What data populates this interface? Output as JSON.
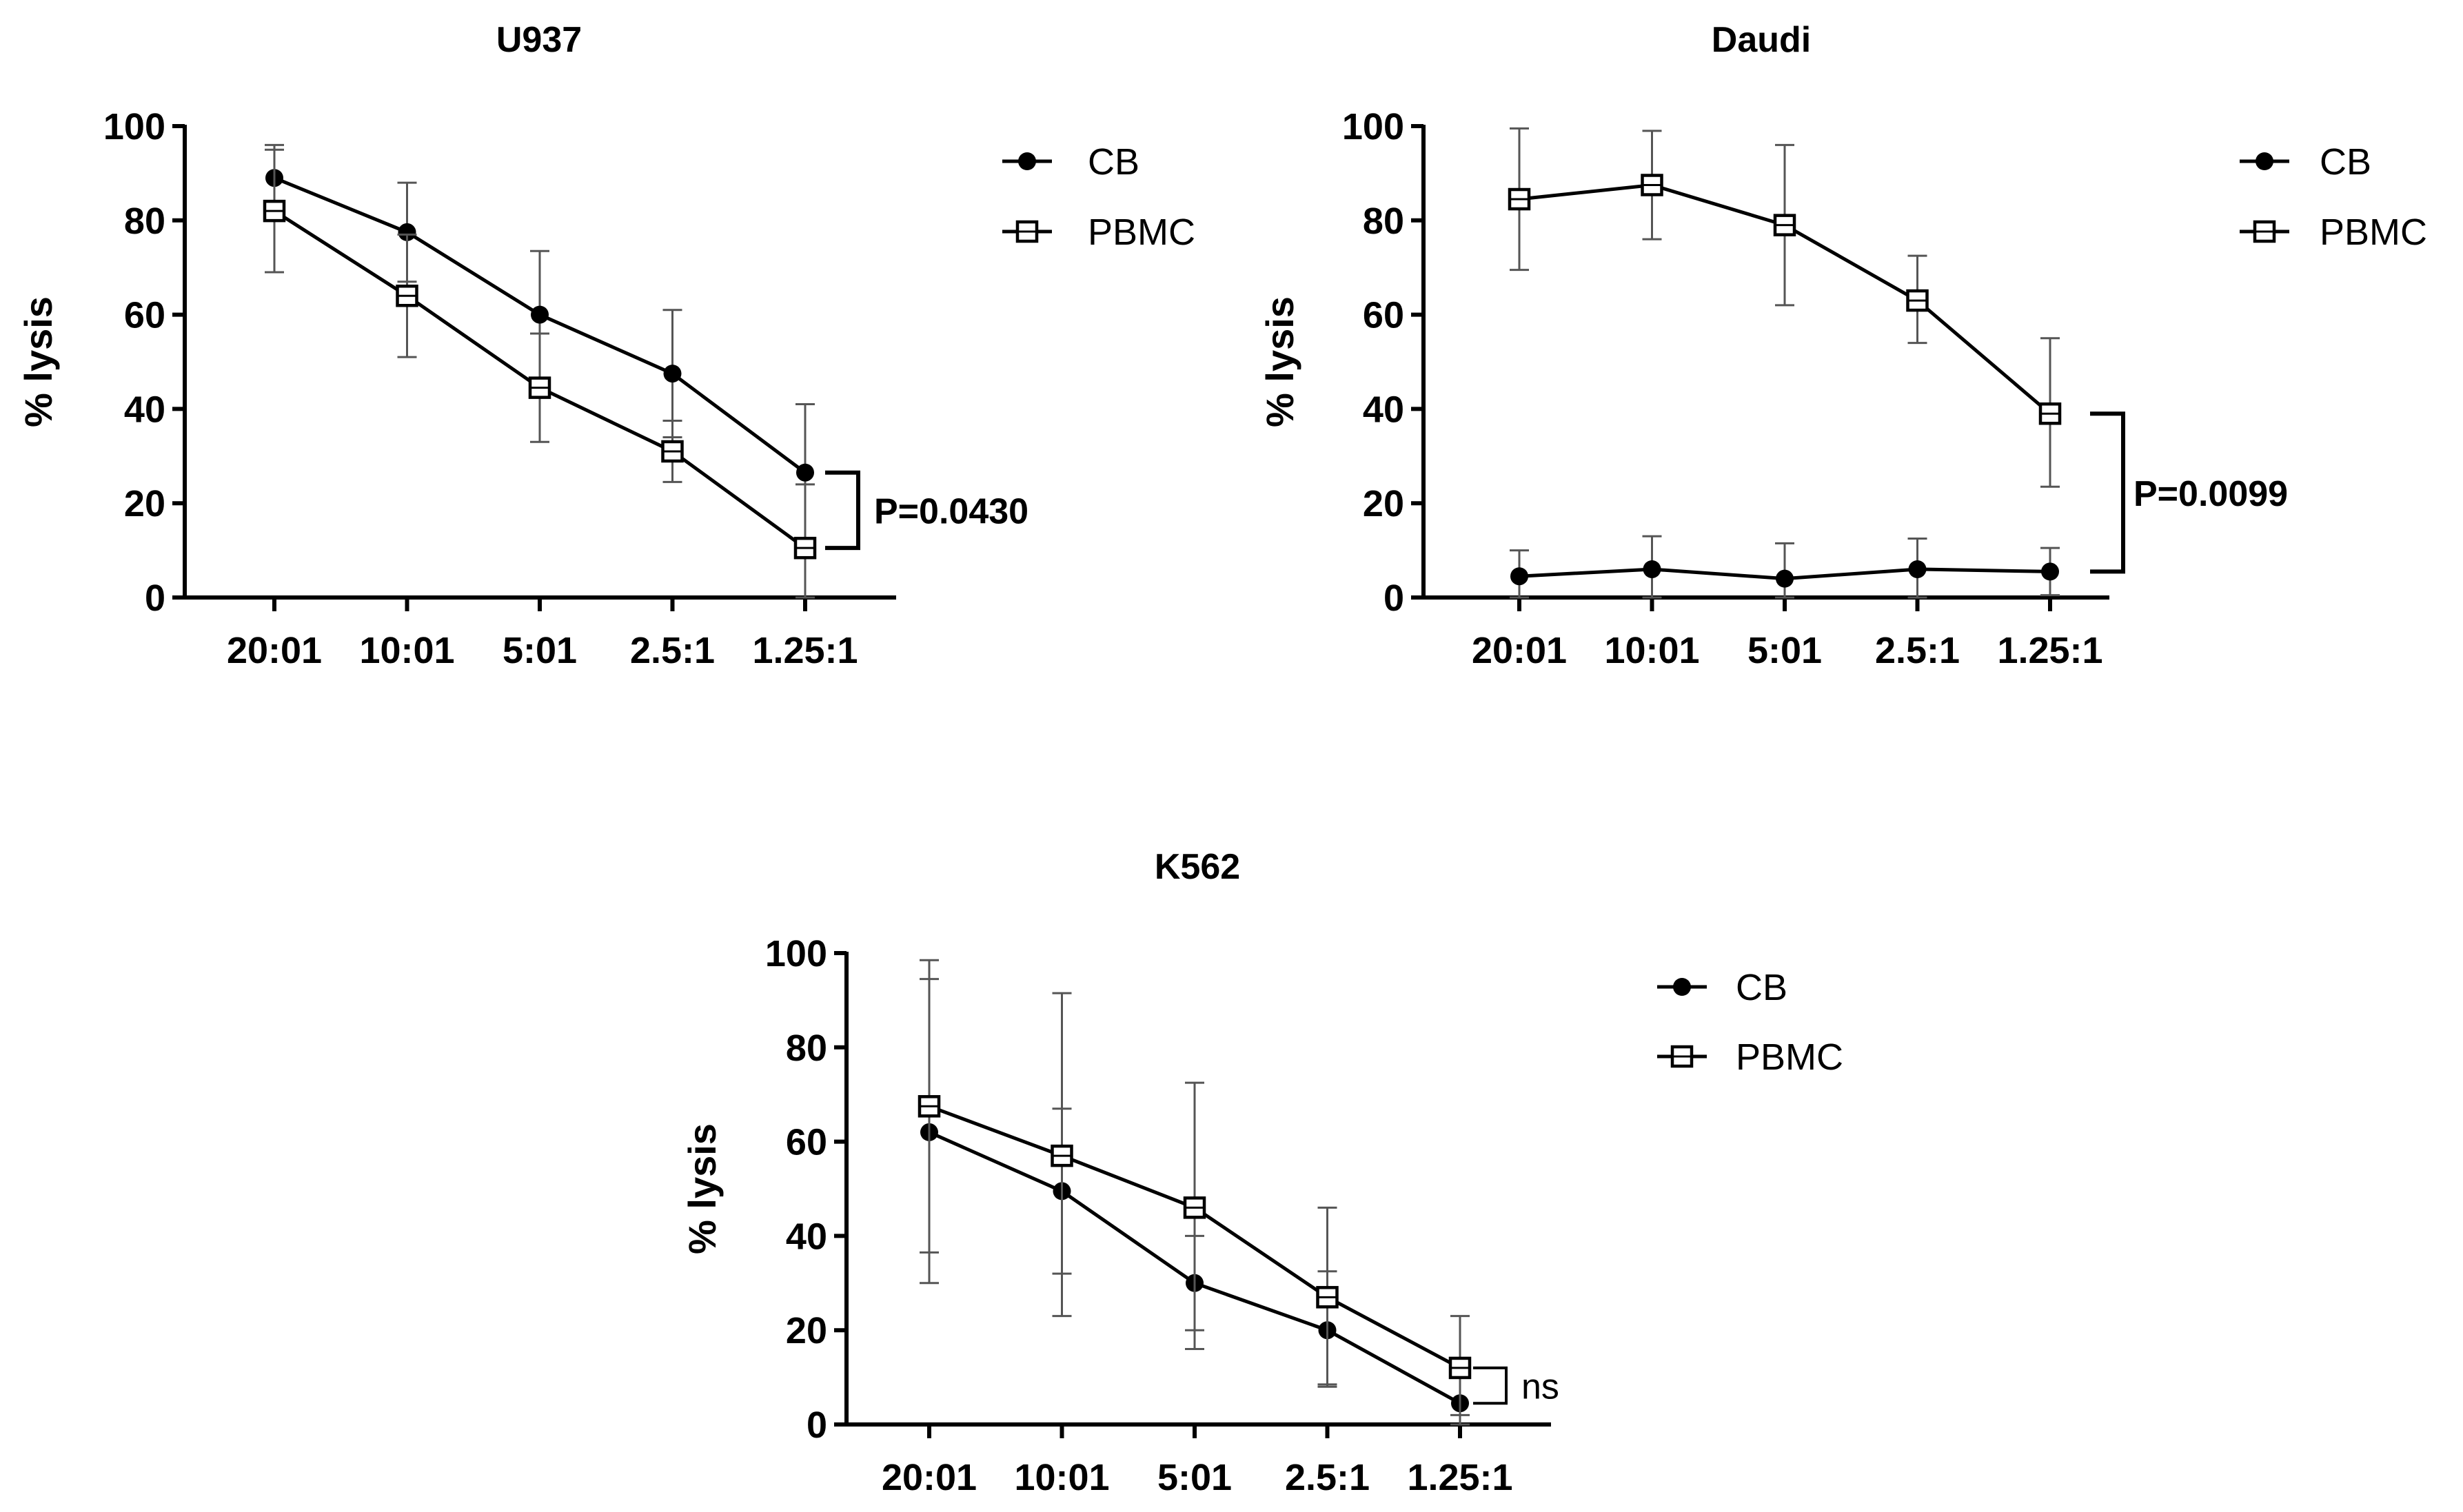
{
  "chart_data": [
    {
      "type": "line",
      "title": "U937",
      "xlabel": "",
      "ylabel": "% lysis",
      "categories": [
        "20:01",
        "10:01",
        "5:01",
        "2.5:1",
        "1.25:1"
      ],
      "ylim": [
        0,
        100
      ],
      "yticks": [
        "0",
        "20",
        "40",
        "60",
        "80",
        "100"
      ],
      "legend_position": "top-right outside",
      "series": [
        {
          "name": "CB",
          "marker": "filled-circle",
          "values": [
            89,
            77.5,
            60,
            47.5,
            26.5
          ],
          "err_high": [
            96,
            88,
            73.5,
            61,
            41
          ],
          "err_low": [
            82,
            67,
            46,
            34,
            12
          ]
        },
        {
          "name": "PBMC",
          "marker": "open-square",
          "values": [
            82,
            64,
            44.5,
            31,
            10.5
          ],
          "err_high": [
            95,
            77,
            56,
            37.5,
            24
          ],
          "err_low": [
            69,
            51,
            33,
            24.5,
            0
          ]
        }
      ],
      "annotation": {
        "text": "P=0.0430",
        "style": "bold",
        "spans": "1.25:1"
      }
    },
    {
      "type": "line",
      "title": "Daudi",
      "xlabel": "",
      "ylabel": "% lysis",
      "categories": [
        "20:01",
        "10:01",
        "5:01",
        "2.5:1",
        "1.25:1"
      ],
      "ylim": [
        0,
        100
      ],
      "yticks": [
        "0",
        "20",
        "40",
        "60",
        "80",
        "100"
      ],
      "legend_position": "top-right outside",
      "series": [
        {
          "name": "CB",
          "marker": "filled-circle",
          "values": [
            4.5,
            6,
            4,
            6,
            5.5
          ],
          "err_high": [
            10,
            13,
            11.5,
            12.5,
            10.5
          ],
          "err_low": [
            0,
            0,
            0,
            0,
            0.5
          ]
        },
        {
          "name": "PBMC",
          "marker": "open-square",
          "values": [
            84.5,
            87.5,
            79,
            63,
            39
          ],
          "err_high": [
            99.5,
            99,
            96,
            72.5,
            55
          ],
          "err_low": [
            69.5,
            76,
            62,
            54,
            23.5
          ]
        }
      ],
      "annotation": {
        "text": "P=0.0099",
        "style": "bold",
        "spans": "1.25:1"
      }
    },
    {
      "type": "line",
      "title": "K562",
      "xlabel": "",
      "ylabel": "% lysis",
      "categories": [
        "20:01",
        "10:01",
        "5:01",
        "2.5:1",
        "1.25:1"
      ],
      "ylim": [
        0,
        100
      ],
      "yticks": [
        "0",
        "20",
        "40",
        "60",
        "80",
        "100"
      ],
      "legend_position": "top-right outside",
      "series": [
        {
          "name": "CB",
          "marker": "filled-circle",
          "values": [
            62,
            49.5,
            30,
            20,
            4.5
          ],
          "err_high": [
            94.5,
            67,
            40,
            32.5,
            10
          ],
          "err_low": [
            30,
            32,
            20,
            8,
            0
          ]
        },
        {
          "name": "PBMC",
          "marker": "open-square",
          "values": [
            67.5,
            57,
            46,
            27,
            12
          ],
          "err_high": [
            98.5,
            91.5,
            72.5,
            46,
            23
          ],
          "err_low": [
            36.5,
            23,
            16,
            8.5,
            2
          ]
        }
      ],
      "annotation": {
        "text": "ns",
        "style": "normal",
        "spans": "1.25:1"
      }
    }
  ]
}
